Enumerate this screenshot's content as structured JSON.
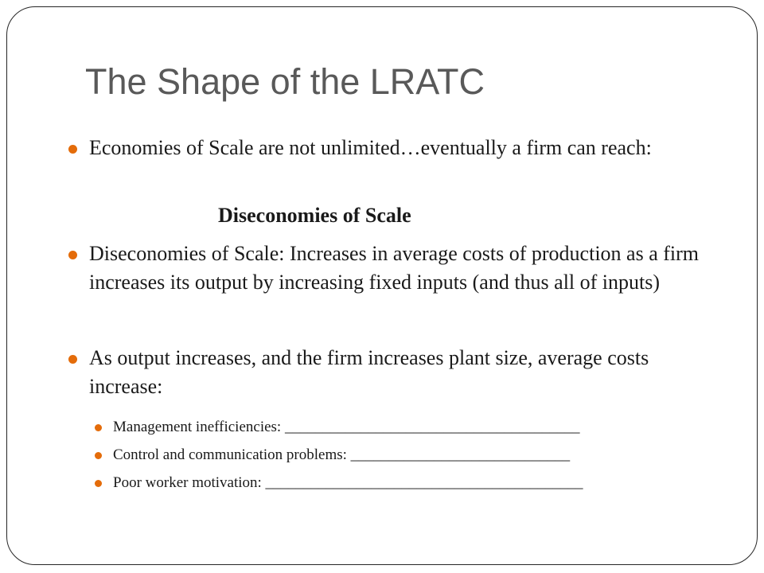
{
  "slide": {
    "title": "The Shape of the LRATC",
    "accent_color": "#E46C0A",
    "bullets": [
      {
        "text": "Economies of Scale are not unlimited…eventually a firm can reach:"
      },
      {
        "text": "Diseconomies of Scale: Increases in average costs of production as a firm increases its output by increasing fixed inputs (and thus all of inputs)"
      },
      {
        "text": "As output increases, and the firm increases plant size, average costs increase:"
      }
    ],
    "centered_text": "Diseconomies of Scale",
    "subbullets": [
      {
        "text": "Management inefficiencies: _______________________________________"
      },
      {
        "text": "Control and communication problems: _____________________________"
      },
      {
        "text": "Poor worker motivation: __________________________________________"
      }
    ]
  }
}
